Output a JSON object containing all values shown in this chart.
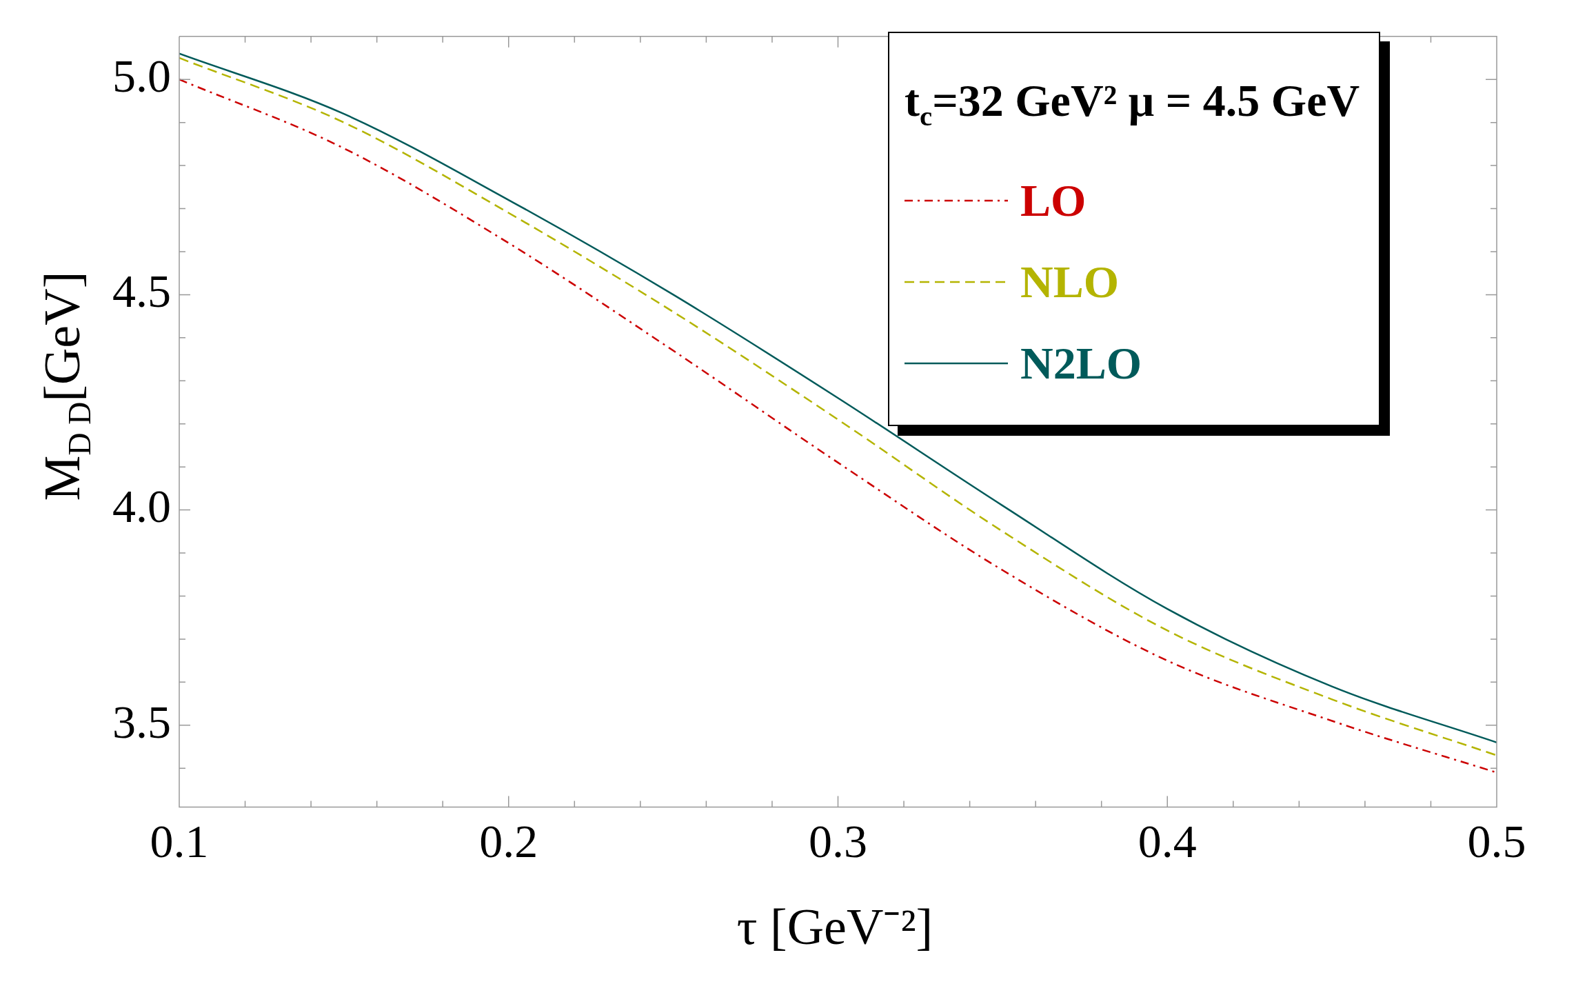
{
  "chart_data": {
    "type": "line",
    "xlabel": "τ [GeV⁻²]",
    "ylabel": "M$_{D D}$[GeV]",
    "legend_title": "t$_{c}$=32 GeV² μ = 4.5 GeV",
    "legend": "top right",
    "x": [
      0.1,
      0.15,
      0.2,
      0.25,
      0.3,
      0.35,
      0.4,
      0.45,
      0.5
    ],
    "series": [
      {
        "name": "LO",
        "color": "#cc0000",
        "line_style": "dashdot",
        "values": [
          5.0,
          4.84,
          4.62,
          4.37,
          4.11,
          3.86,
          3.65,
          3.51,
          3.39
        ]
      },
      {
        "name": "NLO",
        "color": "#b4b400",
        "line_style": "dashed",
        "values": [
          5.05,
          4.9,
          4.69,
          4.46,
          4.21,
          3.95,
          3.72,
          3.56,
          3.43
        ]
      },
      {
        "name": "N2LO",
        "color": "#005a5a",
        "line_style": "solid",
        "values": [
          5.06,
          4.92,
          4.72,
          4.5,
          4.26,
          4.01,
          3.77,
          3.59,
          3.46
        ]
      }
    ],
    "marker": "none",
    "xlim": [
      0.1,
      0.5
    ],
    "ylim": [
      3.31,
      5.1
    ],
    "xticks": [
      0.1,
      {
        "value": 0.12,
        "label": null
      },
      {
        "value": 0.14,
        "label": null
      },
      {
        "value": 0.16,
        "label": null
      },
      {
        "value": 0.18,
        "label": null
      },
      0.2,
      {
        "value": 0.22,
        "label": null
      },
      {
        "value": 0.24,
        "label": null
      },
      {
        "value": 0.26,
        "label": null
      },
      {
        "value": 0.28,
        "label": null
      },
      0.3,
      {
        "value": 0.32,
        "label": null
      },
      {
        "value": 0.34,
        "label": null
      },
      {
        "value": 0.36,
        "label": null
      },
      {
        "value": 0.38,
        "label": null
      },
      0.4,
      {
        "value": 0.42,
        "label": null
      },
      {
        "value": 0.44,
        "label": null
      },
      {
        "value": 0.46,
        "label": null
      },
      {
        "value": 0.48,
        "label": null
      },
      0.5
    ],
    "yticks": [
      {
        "value": 3.4,
        "label": null
      },
      {
        "value": 3.5,
        "label": "3.5"
      },
      {
        "value": 3.6,
        "label": null
      },
      {
        "value": 3.7,
        "label": null
      },
      {
        "value": 3.8,
        "label": null
      },
      {
        "value": 3.9,
        "label": null
      },
      {
        "value": 4.0,
        "label": "4.0"
      },
      {
        "value": 4.1,
        "label": null
      },
      {
        "value": 4.2,
        "label": null
      },
      {
        "value": 4.3,
        "label": null
      },
      {
        "value": 4.4,
        "label": null
      },
      {
        "value": 4.5,
        "label": "4.5"
      },
      {
        "value": 4.6,
        "label": null
      },
      {
        "value": 4.7,
        "label": null
      },
      {
        "value": 4.8,
        "label": null
      },
      {
        "value": 4.9,
        "label": null
      },
      {
        "value": 5.0,
        "label": "5.0"
      }
    ]
  }
}
